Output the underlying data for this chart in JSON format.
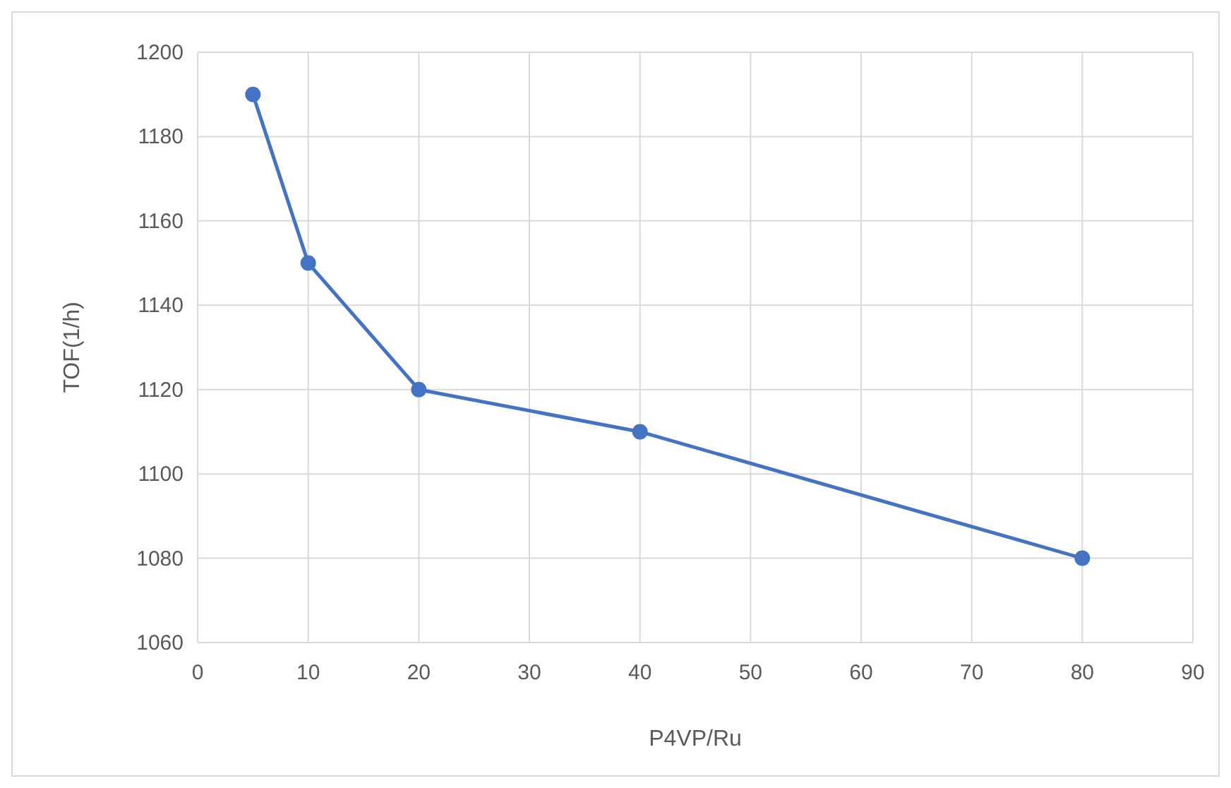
{
  "chart_data": {
    "type": "line",
    "xlabel": "P4VP/Ru",
    "ylabel": "TOF(1/h)",
    "x": [
      5,
      10,
      20,
      40,
      80
    ],
    "series": [
      {
        "color": "#4472c4",
        "values": [
          1190,
          1150,
          1120,
          1110,
          1080
        ]
      }
    ],
    "xlim": [
      0,
      90
    ],
    "xticks": [
      0,
      10,
      20,
      30,
      40,
      50,
      60,
      70,
      80,
      90
    ],
    "ylim": [
      1060,
      1200
    ],
    "yticks": [
      1060,
      1080,
      1100,
      1120,
      1140,
      1160,
      1180,
      1200
    ],
    "grid": true,
    "marker": "circle",
    "line_style": "solid"
  }
}
